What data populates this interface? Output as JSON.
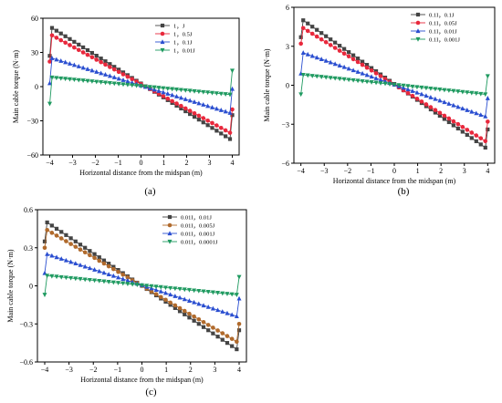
{
  "chart_data": [
    {
      "type": "line",
      "panel_label": "(a)",
      "xlabel": "Horizontal distance from the midspan (m)",
      "ylabel": "Main cable torque (N·m)",
      "xlim": [
        -4.3,
        4.3
      ],
      "ylim": [
        -60,
        60
      ],
      "xticks": [
        -4,
        -3,
        -2,
        -1,
        0,
        1,
        2,
        3,
        4
      ],
      "yticks": [
        -60,
        -30,
        0,
        30,
        60
      ],
      "legend_position": "top-right",
      "series": [
        {
          "name": "1，J",
          "color": "#444444",
          "marker": "square",
          "edge": 27,
          "peak": 51.5,
          "end": 46,
          "tail": -25
        },
        {
          "name": "1，0.5J",
          "color": "#e8283c",
          "marker": "circle",
          "edge": 22,
          "peak": 45,
          "end": 40.5,
          "tail": -20
        },
        {
          "name": "1，0.1J",
          "color": "#2a4ed0",
          "marker": "triangle-up",
          "edge": 3,
          "peak": 25,
          "end": 23,
          "tail": -2
        },
        {
          "name": "1，0.01J",
          "color": "#1f9a60",
          "marker": "triangle-down",
          "edge": -15,
          "peak": 8,
          "end": 7,
          "tail": 14
        }
      ]
    },
    {
      "type": "line",
      "panel_label": "(b)",
      "xlabel": "Horizontal distance from the midspan (m)",
      "ylabel": "Main cable torque (N·m)",
      "xlim": [
        -4.3,
        4.3
      ],
      "ylim": [
        -6,
        6
      ],
      "xticks": [
        -4,
        -3,
        -2,
        -1,
        0,
        1,
        2,
        3,
        4
      ],
      "yticks": [
        -6,
        -3,
        0,
        3,
        6
      ],
      "legend_position": "top-right",
      "series": [
        {
          "name": "0.1I，0.1J",
          "color": "#444444",
          "marker": "square",
          "edge": 3.7,
          "peak": 5.0,
          "end": 4.8,
          "tail": -3.4
        },
        {
          "name": "0.1I，0.05J",
          "color": "#e8283c",
          "marker": "circle",
          "edge": 3.2,
          "peak": 4.4,
          "end": 4.3,
          "tail": -2.8
        },
        {
          "name": "0.1I，0.01J",
          "color": "#2a4ed0",
          "marker": "triangle-up",
          "edge": 0.9,
          "peak": 2.5,
          "end": 2.4,
          "tail": -1.0
        },
        {
          "name": "0.1I，0.001J",
          "color": "#1f9a60",
          "marker": "triangle-down",
          "edge": -0.7,
          "peak": 0.8,
          "end": 0.7,
          "tail": 0.7
        }
      ]
    },
    {
      "type": "line",
      "panel_label": "(c)",
      "xlabel": "Horizontal distance from the midspan (m)",
      "ylabel": "Main cable torque (N·m)",
      "xlim": [
        -4.3,
        4.3
      ],
      "ylim": [
        -0.6,
        0.6
      ],
      "xticks": [
        -4,
        -3,
        -2,
        -1,
        0,
        1,
        2,
        3,
        4
      ],
      "yticks": [
        -0.6,
        -0.3,
        0,
        0.3,
        0.6
      ],
      "yticklabels": [
        "−0.6",
        "−0.3",
        "0",
        "0.3",
        "0.6"
      ],
      "legend_position": "top-right",
      "series": [
        {
          "name": "0.01I，0.01J",
          "color": "#444444",
          "marker": "square",
          "edge": 0.35,
          "peak": 0.5,
          "end": 0.5,
          "tail": -0.35
        },
        {
          "name": "0.01I，0.005J",
          "color": "#b06a2c",
          "marker": "circle",
          "edge": 0.3,
          "peak": 0.44,
          "end": 0.44,
          "tail": -0.3
        },
        {
          "name": "0.01I，0.001J",
          "color": "#2a4ed0",
          "marker": "triangle-up",
          "edge": 0.1,
          "peak": 0.25,
          "end": 0.24,
          "tail": -0.1
        },
        {
          "name": "0.01I，0.0001J",
          "color": "#1f9a60",
          "marker": "triangle-down",
          "edge": -0.07,
          "peak": 0.08,
          "end": 0.07,
          "tail": 0.07
        }
      ]
    }
  ]
}
